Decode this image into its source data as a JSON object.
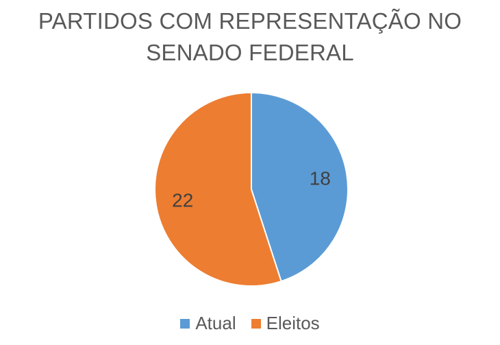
{
  "chart_data": {
    "type": "pie",
    "title_lines": [
      "PARTIDOS COM REPRESENTAÇÃO NO",
      "SENADO FEDERAL"
    ],
    "categories": [
      "Atual",
      "Eleitos"
    ],
    "values": [
      18,
      22
    ],
    "colors": [
      "#5b9bd5",
      "#ed7d31"
    ],
    "data_labels": [
      "18",
      "22"
    ],
    "legend_position": "bottom",
    "start_angle": "12 o'clock, clockwise"
  }
}
